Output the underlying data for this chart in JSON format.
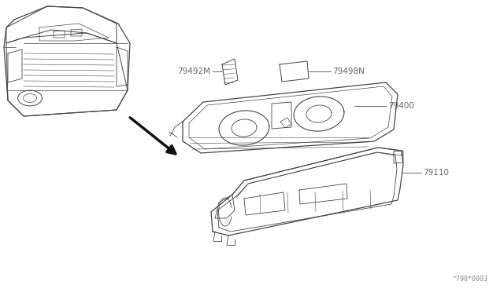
{
  "background_color": "#ffffff",
  "line_color": "#444444",
  "label_color": "#666666",
  "arrow_color": "#111111",
  "footer_text": "^790*0003",
  "fig_width": 6.4,
  "fig_height": 3.72,
  "dpi": 100
}
